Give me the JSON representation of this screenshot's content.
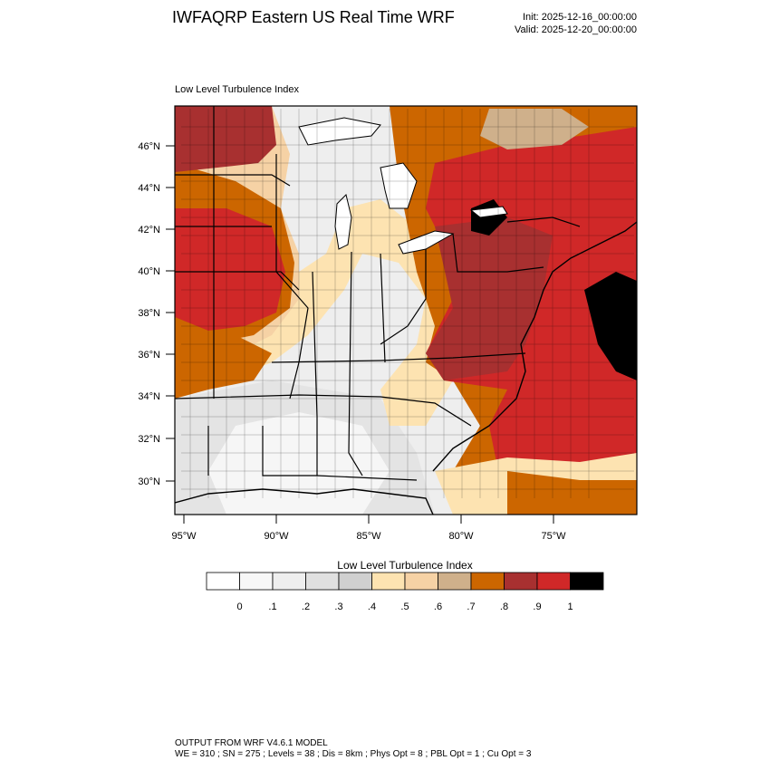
{
  "header": {
    "title": "IWFAQRP Eastern US Real Time WRF",
    "init": "Init: 2025-12-16_00:00:00",
    "valid": "Valid: 2025-12-20_00:00:00"
  },
  "plot": {
    "label": "Low Level Turbulence Index",
    "lat_labels": [
      "46°N",
      "44°N",
      "42°N",
      "40°N",
      "38°N",
      "36°N",
      "34°N",
      "32°N",
      "30°N"
    ],
    "lon_labels": [
      "95°W",
      "90°W",
      "85°W",
      "80°W",
      "75°W"
    ]
  },
  "colorbar": {
    "title": "Low Level Turbulence Index",
    "colors": [
      "#ffffff",
      "#f7f7f7",
      "#eeeeee",
      "#e0e0e0",
      "#d0d0d0",
      "#fde3b1",
      "#f6d2a5",
      "#cfb08b",
      "#cc6600",
      "#a83030",
      "#d02828",
      "#000000"
    ],
    "labels": [
      "0",
      ".1",
      ".2",
      ".3",
      ".4",
      ".5",
      ".6",
      ".7",
      ".8",
      ".9",
      "1"
    ]
  },
  "footer": {
    "line1": "OUTPUT FROM WRF V4.6.1 MODEL",
    "line2": "WE = 310 ; SN = 275 ; Levels = 38 ; Dis = 8km ; Phys Opt = 8 ; PBL Opt = 1 ; Cu Opt = 3"
  }
}
